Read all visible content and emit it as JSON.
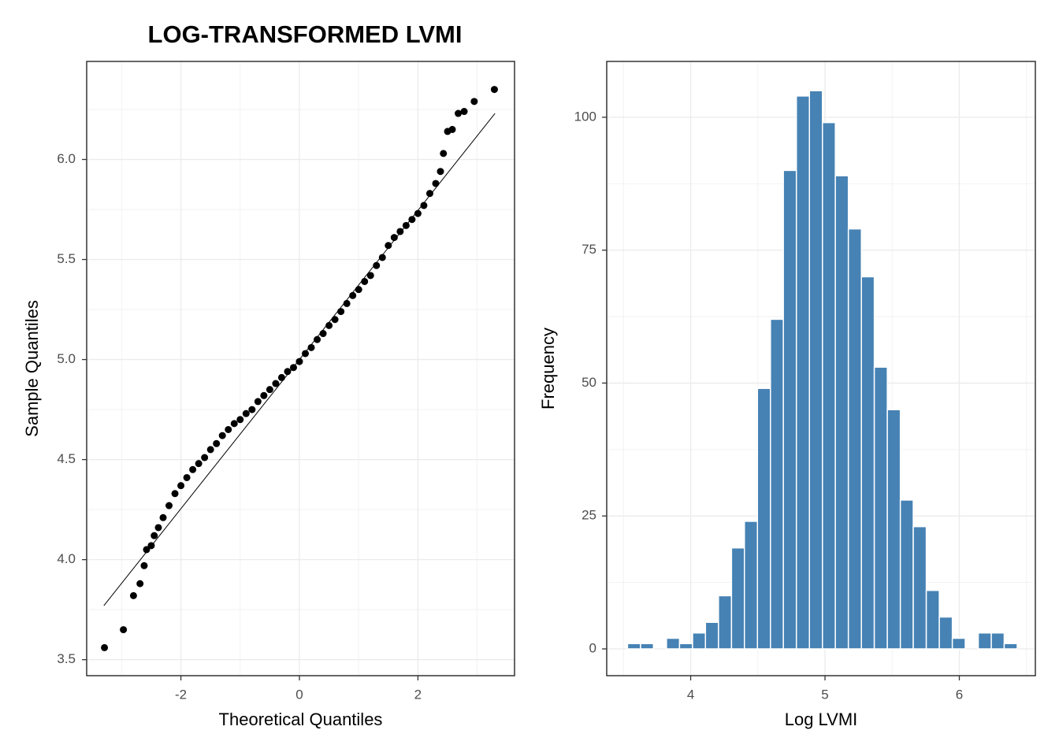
{
  "chart_data": [
    {
      "type": "scatter",
      "title": "LOG-TRANSFORMED LVMI",
      "xlabel": "Theoretical Quantiles",
      "ylabel": "Sample Quantiles",
      "x": [
        -3.29,
        -2.97,
        -2.8,
        -2.69,
        -2.62,
        -2.58,
        -2.5,
        -2.45,
        -2.38,
        -2.3,
        -2.2,
        -2.1,
        -2.0,
        -1.9,
        -1.8,
        -1.7,
        -1.6,
        -1.5,
        -1.4,
        -1.3,
        -1.2,
        -1.1,
        -1.0,
        -0.9,
        -0.8,
        -0.7,
        -0.6,
        -0.5,
        -0.4,
        -0.3,
        -0.2,
        -0.1,
        0,
        0.1,
        0.2,
        0.3,
        0.4,
        0.5,
        0.6,
        0.7,
        0.8,
        0.9,
        1.0,
        1.1,
        1.2,
        1.3,
        1.4,
        1.5,
        1.6,
        1.7,
        1.8,
        1.9,
        2.0,
        2.1,
        2.2,
        2.3,
        2.38,
        2.43,
        2.5,
        2.58,
        2.68,
        2.78,
        2.95,
        3.29
      ],
      "y": [
        3.56,
        3.65,
        3.82,
        3.88,
        3.97,
        4.05,
        4.07,
        4.12,
        4.16,
        4.21,
        4.27,
        4.33,
        4.37,
        4.41,
        4.45,
        4.48,
        4.51,
        4.55,
        4.58,
        4.62,
        4.65,
        4.68,
        4.7,
        4.73,
        4.75,
        4.79,
        4.82,
        4.85,
        4.88,
        4.91,
        4.94,
        4.96,
        4.99,
        5.03,
        5.06,
        5.1,
        5.13,
        5.17,
        5.2,
        5.24,
        5.28,
        5.32,
        5.35,
        5.39,
        5.42,
        5.47,
        5.51,
        5.57,
        5.61,
        5.64,
        5.67,
        5.7,
        5.73,
        5.77,
        5.83,
        5.88,
        5.94,
        6.03,
        6.14,
        6.15,
        6.23,
        6.24,
        6.29,
        6.35
      ],
      "color": "#000000",
      "qq_line": {
        "x": [
          -3.3,
          3.3
        ],
        "y": [
          3.77,
          6.23
        ]
      },
      "xlim": [
        -3.59,
        3.63
      ],
      "ylim": [
        3.42,
        6.49
      ],
      "xticks": [
        -2,
        0,
        2
      ],
      "xminor": [
        -3,
        -1,
        1,
        3
      ],
      "yticks": [
        3.5,
        {
          "value": 4,
          "label": "4.0"
        },
        4.5,
        {
          "value": 5,
          "label": "5.0"
        },
        5.5,
        {
          "value": 6,
          "label": "6.0"
        }
      ],
      "yminor": [
        3.75,
        4.25,
        4.75,
        5.25,
        5.75,
        6.25
      ],
      "grid": true
    },
    {
      "type": "histogram",
      "xlabel": "Log LVMI",
      "ylabel": "Frequency",
      "bins": [
        3.53,
        3.627,
        3.723,
        3.82,
        3.917,
        4.014,
        4.11,
        4.207,
        4.304,
        4.4,
        4.497,
        4.594,
        4.69,
        4.787,
        4.884,
        4.981,
        5.077,
        5.174,
        5.271,
        5.367,
        5.464,
        5.561,
        5.657,
        5.754,
        5.851,
        5.948,
        6.044,
        6.141,
        6.238,
        6.334,
        6.431
      ],
      "values": [
        1,
        1,
        0,
        2,
        1,
        3,
        5,
        10,
        19,
        24,
        49,
        62,
        90,
        104,
        105,
        99,
        89,
        79,
        70,
        53,
        45,
        28,
        23,
        11,
        6,
        2,
        0,
        3,
        3,
        1
      ],
      "color": "#4682b4",
      "xlim": [
        3.375,
        6.566
      ],
      "ylim": [
        -5.04,
        110.5
      ],
      "xticks": [
        4,
        5,
        6
      ],
      "xminor": [
        3.5,
        4.5,
        5.5,
        6.5
      ],
      "yticks": [
        0,
        25,
        50,
        75,
        100
      ],
      "yminor": [
        12.5,
        37.5,
        62.5,
        87.5
      ],
      "grid": true
    }
  ]
}
